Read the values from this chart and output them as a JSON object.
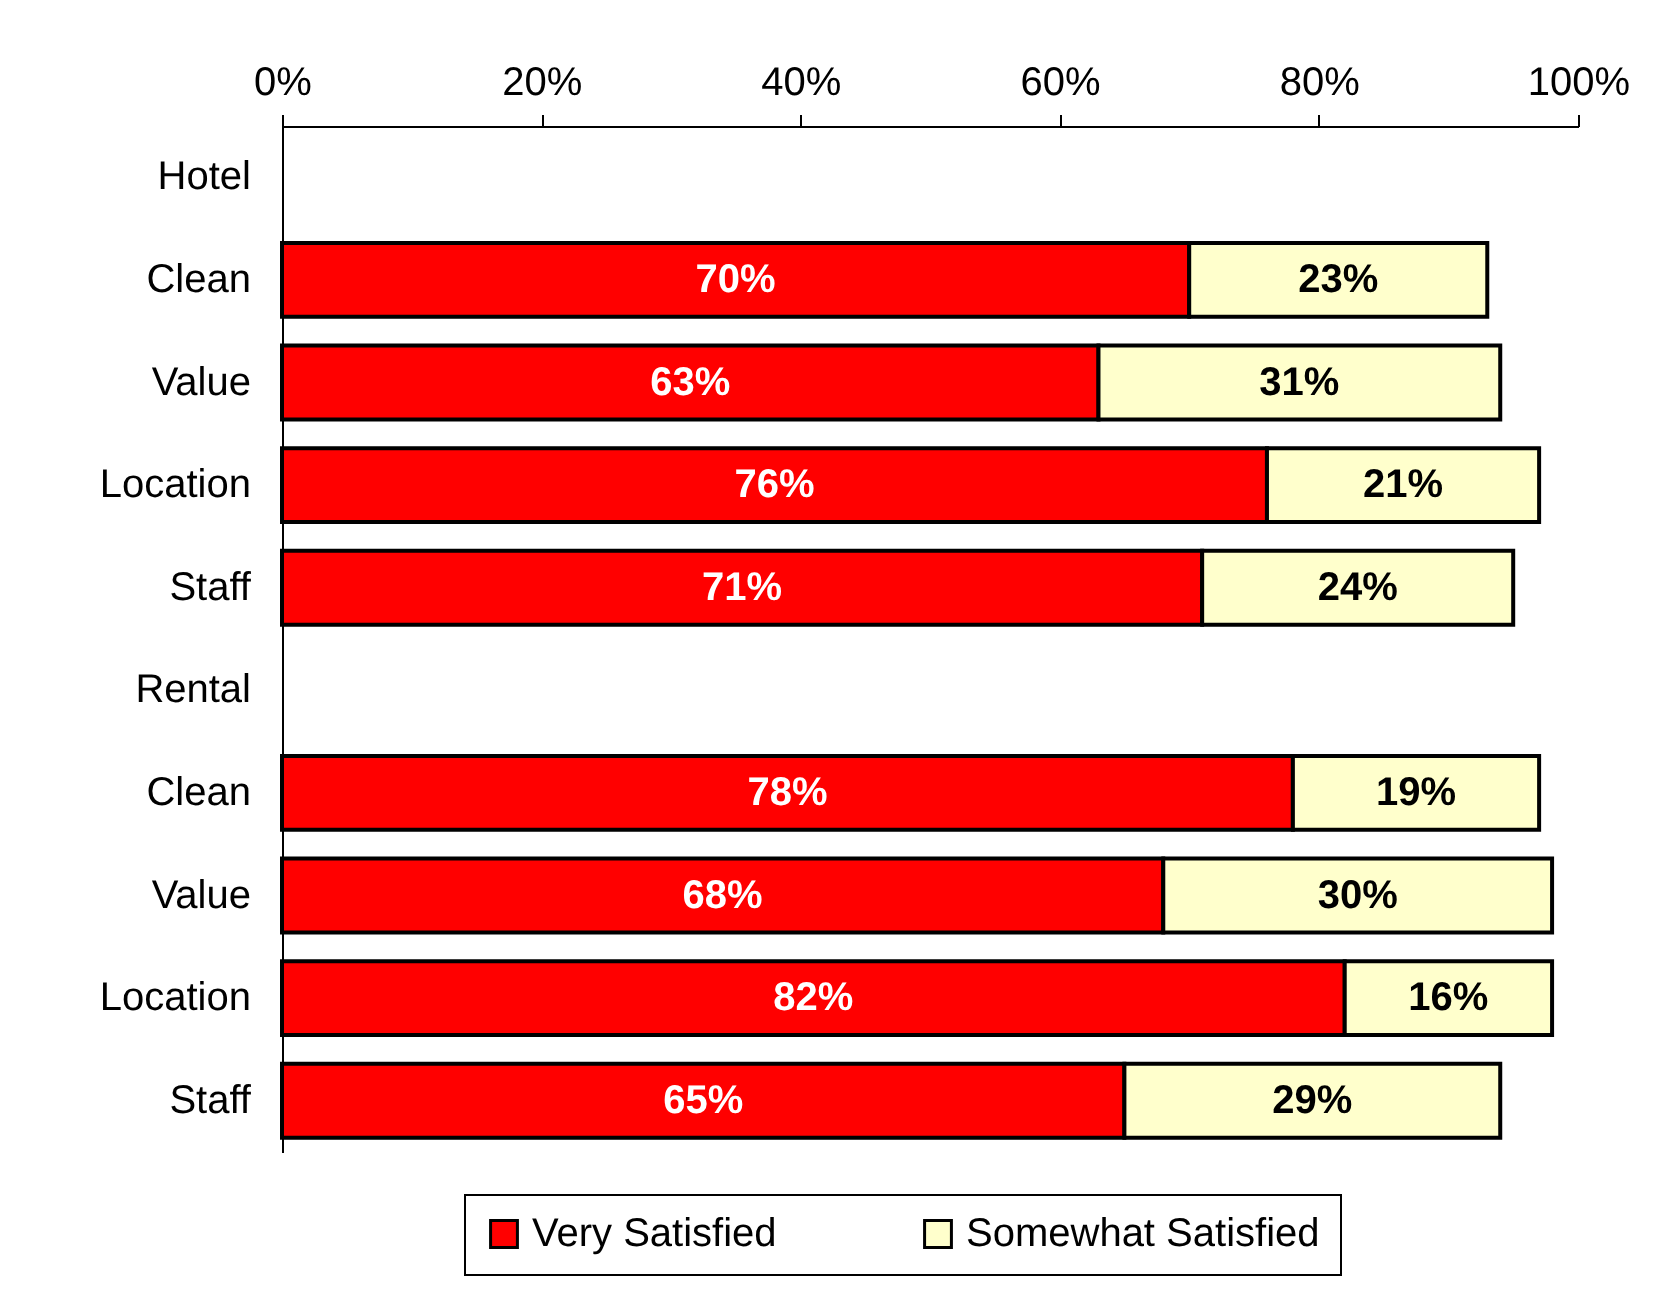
{
  "chart_data": {
    "type": "bar",
    "orientation": "horizontal",
    "stacked": true,
    "categories": [
      "Hotel",
      "Clean",
      "Value",
      "Location",
      "Staff",
      "Rental",
      "Clean",
      "Value",
      "Location",
      "Staff"
    ],
    "series": [
      {
        "name": "Very Satisfied",
        "color": "#ff0000",
        "values": [
          null,
          70,
          63,
          76,
          71,
          null,
          78,
          68,
          82,
          65
        ],
        "value_labels": [
          null,
          "70%",
          "63%",
          "76%",
          "71%",
          null,
          "78%",
          "68%",
          "82%",
          "65%"
        ]
      },
      {
        "name": "Somewhat Satisfied",
        "color": "#ffffcc",
        "values": [
          null,
          23,
          31,
          21,
          24,
          null,
          19,
          30,
          16,
          29
        ],
        "value_labels": [
          null,
          "23%",
          "31%",
          "21%",
          "24%",
          null,
          "19%",
          "30%",
          "16%",
          "29%"
        ]
      }
    ],
    "xlim": [
      0,
      100
    ],
    "xticks": [
      {
        "value": 0,
        "label": "0%"
      },
      {
        "value": 20,
        "label": "20%"
      },
      {
        "value": 40,
        "label": "40%"
      },
      {
        "value": 60,
        "label": "60%"
      },
      {
        "value": 80,
        "label": "80%"
      },
      {
        "value": 100,
        "label": "100%"
      }
    ],
    "grid": false,
    "legend": "bottom"
  }
}
